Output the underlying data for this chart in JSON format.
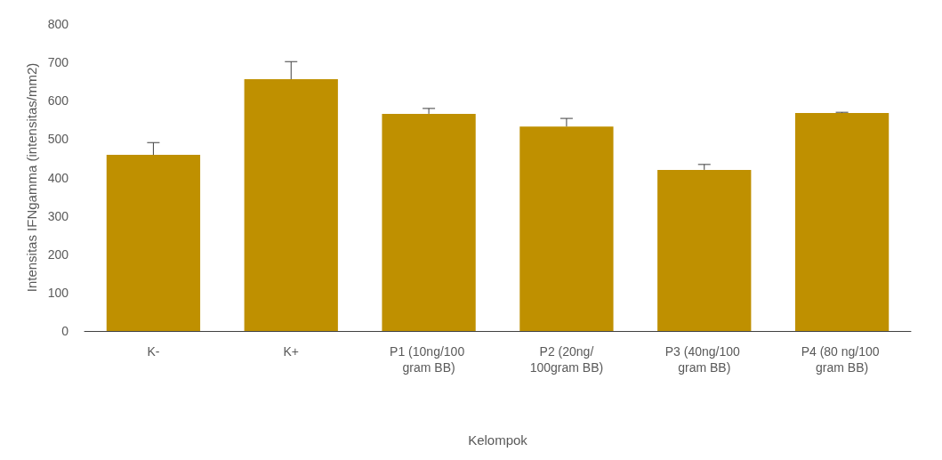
{
  "chart_data": {
    "type": "bar",
    "categories": [
      "K-",
      "K+",
      "P1 (10ng/100 gram BB)",
      "P2 (20ng/100gram BB)",
      "P3 (40ng/100 gram BB)",
      "P4 (80 ng/100 gram BB)"
    ],
    "values": [
      459,
      656,
      566,
      533,
      420,
      568
    ],
    "errors": [
      [
        459,
        491
      ],
      [
        656,
        702
      ],
      [
        566,
        580
      ],
      [
        533,
        554
      ],
      [
        420,
        434
      ],
      [
        568,
        570
      ]
    ],
    "color": "#bf9000",
    "xlabel": "Kelompok",
    "ylabel": "Intensitas IFNgamma (intensitas/mm2)",
    "ylim": [
      0,
      800
    ],
    "yticks": [
      0,
      100,
      200,
      300,
      400,
      500,
      600,
      700,
      800
    ],
    "grid": false
  }
}
